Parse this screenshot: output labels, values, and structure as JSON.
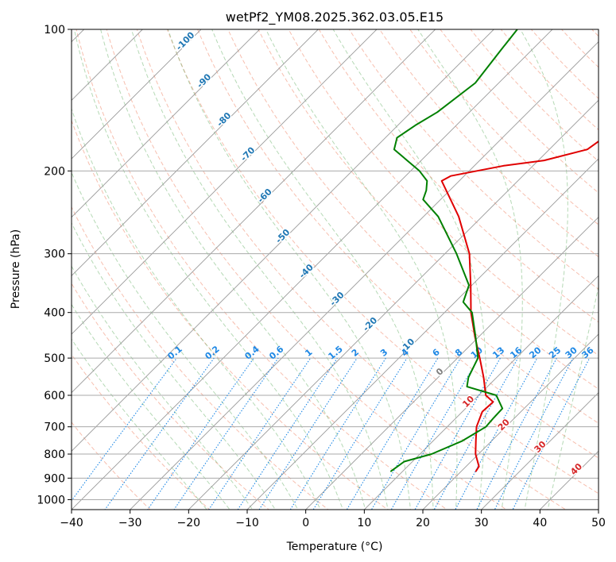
{
  "chart_data": {
    "type": "skew-t",
    "title": "wetPf2_YM08.2025.362.03.05.E15",
    "xlabel": "Temperature (°C)",
    "ylabel": "Pressure (hPa)",
    "xlim": [
      -40,
      50
    ],
    "ylim": [
      1050,
      100
    ],
    "x_ticks": [
      -40,
      -30,
      -20,
      -10,
      0,
      10,
      20,
      30,
      40,
      50
    ],
    "x_tick_labels": [
      "−40",
      "−30",
      "−20",
      "−10",
      "0",
      "10",
      "20",
      "30",
      "40",
      "50"
    ],
    "y_ticks": [
      1000,
      900,
      800,
      700,
      600,
      500,
      400,
      300,
      200,
      100
    ],
    "y_tick_labels": [
      "1000",
      "900",
      "800",
      "700",
      "600",
      "500",
      "400",
      "300",
      "200",
      "100"
    ],
    "isotherm_labels": [
      {
        "label": "-100",
        "p": 107
      },
      {
        "label": "-90",
        "p": 130
      },
      {
        "label": "-80",
        "p": 157
      },
      {
        "label": "-70",
        "p": 186
      },
      {
        "label": "-60",
        "p": 228
      },
      {
        "label": "-50",
        "p": 278
      },
      {
        "label": "-40",
        "p": 330
      },
      {
        "label": "-30",
        "p": 378
      },
      {
        "label": "-20",
        "p": 428
      },
      {
        "label": "-10",
        "p": 475
      },
      {
        "label": "0",
        "p": 540
      },
      {
        "label": "10",
        "p": 625
      },
      {
        "label": "20",
        "p": 700
      },
      {
        "label": "30",
        "p": 780
      },
      {
        "label": "40",
        "p": 870
      }
    ],
    "mixing_ratio_labels": [
      "0.1",
      "0.2",
      "0.4",
      "0.6",
      "1",
      "1.5",
      "2",
      "3",
      "4",
      "6",
      "8",
      "10",
      "13",
      "16",
      "20",
      "25",
      "30",
      "36"
    ],
    "mixing_ratio_values": [
      0.1,
      0.2,
      0.4,
      0.6,
      1,
      1.5,
      2,
      3,
      4,
      6,
      8,
      10,
      13,
      16,
      20,
      25,
      30,
      36
    ],
    "series": [
      {
        "name": "Temperature",
        "color": "#e00000",
        "points": [
          [
            870,
            22.5
          ],
          [
            850,
            22.2
          ],
          [
            800,
            19.5
          ],
          [
            750,
            17.3
          ],
          [
            700,
            15.0
          ],
          [
            650,
            13.4
          ],
          [
            620,
            13.6
          ],
          [
            600,
            11.2
          ],
          [
            550,
            7.8
          ],
          [
            500,
            3.8
          ],
          [
            450,
            -0.7
          ],
          [
            400,
            -5.5
          ],
          [
            350,
            -10.2
          ],
          [
            300,
            -15.8
          ],
          [
            250,
            -24.0
          ],
          [
            210,
            -33.0
          ],
          [
            205,
            -32.3
          ],
          [
            195,
            -25.0
          ],
          [
            190,
            -19.0
          ],
          [
            180,
            -13.5
          ],
          [
            165,
            -12.3
          ],
          [
            150,
            -13.0
          ],
          [
            140,
            -12.3
          ],
          [
            120,
            -10.5
          ],
          [
            100,
            -11.3
          ]
        ]
      },
      {
        "name": "Dewpoint",
        "color": "#008000",
        "points": [
          [
            870,
            8.0
          ],
          [
            850,
            8.3
          ],
          [
            830,
            8.6
          ],
          [
            800,
            12.0
          ],
          [
            750,
            15.0
          ],
          [
            700,
            16.6
          ],
          [
            670,
            16.4
          ],
          [
            640,
            16.3
          ],
          [
            600,
            13.0
          ],
          [
            575,
            6.5
          ],
          [
            550,
            5.2
          ],
          [
            500,
            3.5
          ],
          [
            450,
            -0.6
          ],
          [
            400,
            -5.3
          ],
          [
            380,
            -8.6
          ],
          [
            350,
            -10.5
          ],
          [
            300,
            -18.0
          ],
          [
            250,
            -27.5
          ],
          [
            230,
            -33.0
          ],
          [
            220,
            -34.0
          ],
          [
            210,
            -35.5
          ],
          [
            200,
            -38.5
          ],
          [
            180,
            -46.5
          ],
          [
            170,
            -48.0
          ],
          [
            160,
            -47.0
          ],
          [
            150,
            -45.5
          ],
          [
            130,
            -44.0
          ],
          [
            110,
            -45.3
          ],
          [
            100,
            -46.0
          ]
        ]
      }
    ]
  }
}
